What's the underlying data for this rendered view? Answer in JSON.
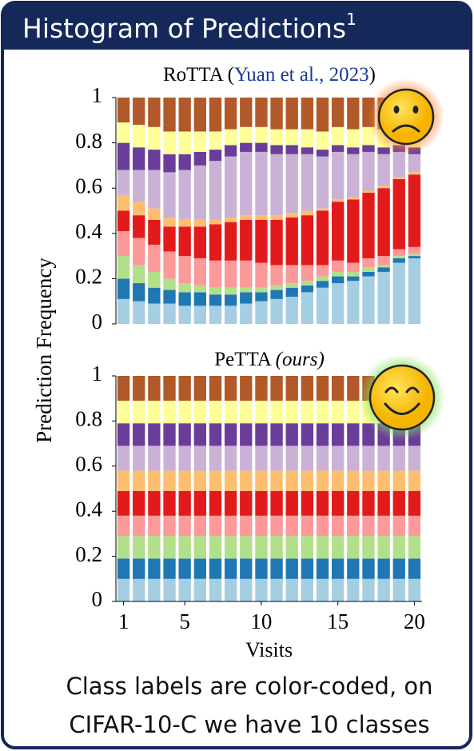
{
  "header": {
    "title": "Histogram of Predictions",
    "footnote": "1"
  },
  "chart_data": [
    {
      "type": "bar",
      "stacked": true,
      "title": [
        "RoTTA (",
        "Yuan et al., 2023",
        ")"
      ],
      "ylabel": "Prediction Frequency",
      "x": [
        1,
        2,
        3,
        4,
        5,
        6,
        7,
        8,
        9,
        10,
        11,
        12,
        13,
        14,
        15,
        16,
        17,
        18,
        19,
        20
      ],
      "xlim": [
        0.5,
        20.5
      ],
      "ylim": [
        0,
        1
      ],
      "yticks": [
        0,
        0.2,
        0.4,
        0.6,
        0.8,
        1
      ],
      "series": [
        {
          "color": "#a6cee3",
          "values": [
            0.11,
            0.1,
            0.09,
            0.09,
            0.08,
            0.08,
            0.08,
            0.08,
            0.09,
            0.1,
            0.11,
            0.12,
            0.14,
            0.16,
            0.18,
            0.19,
            0.21,
            0.23,
            0.27,
            0.29
          ]
        },
        {
          "color": "#1f78b4",
          "values": [
            0.09,
            0.08,
            0.07,
            0.06,
            0.06,
            0.06,
            0.05,
            0.05,
            0.05,
            0.04,
            0.04,
            0.04,
            0.03,
            0.03,
            0.03,
            0.02,
            0.02,
            0.02,
            0.02,
            0.01
          ]
        },
        {
          "color": "#b2df8a",
          "values": [
            0.1,
            0.08,
            0.07,
            0.05,
            0.04,
            0.03,
            0.03,
            0.03,
            0.02,
            0.02,
            0.02,
            0.02,
            0.02,
            0.02,
            0.02,
            0.02,
            0.02,
            0.01,
            0.01,
            0.01
          ]
        },
        {
          "color": "#fb9a99",
          "values": [
            0.11,
            0.12,
            0.12,
            0.12,
            0.12,
            0.12,
            0.12,
            0.12,
            0.12,
            0.11,
            0.09,
            0.08,
            0.07,
            0.05,
            0.05,
            0.04,
            0.04,
            0.04,
            0.03,
            0.03
          ]
        },
        {
          "color": "#e31a1c",
          "values": [
            0.09,
            0.1,
            0.11,
            0.11,
            0.13,
            0.14,
            0.16,
            0.17,
            0.18,
            0.19,
            0.2,
            0.21,
            0.22,
            0.24,
            0.26,
            0.28,
            0.29,
            0.3,
            0.31,
            0.32
          ]
        },
        {
          "color": "#fdbf6f",
          "values": [
            0.07,
            0.06,
            0.05,
            0.04,
            0.03,
            0.03,
            0.02,
            0.02,
            0.02,
            0.02,
            0.02,
            0.02,
            0.02,
            0.01,
            0.01,
            0.01,
            0.01,
            0.01,
            0.01,
            0.01
          ]
        },
        {
          "color": "#cab2d6",
          "values": [
            0.11,
            0.14,
            0.17,
            0.2,
            0.22,
            0.24,
            0.26,
            0.27,
            0.28,
            0.28,
            0.27,
            0.26,
            0.25,
            0.23,
            0.21,
            0.19,
            0.17,
            0.14,
            0.11,
            0.08
          ]
        },
        {
          "color": "#6a3d9a",
          "values": [
            0.12,
            0.1,
            0.09,
            0.08,
            0.07,
            0.06,
            0.05,
            0.05,
            0.04,
            0.04,
            0.04,
            0.04,
            0.03,
            0.03,
            0.03,
            0.03,
            0.03,
            0.03,
            0.03,
            0.03
          ]
        },
        {
          "color": "#ffff99",
          "values": [
            0.09,
            0.1,
            0.1,
            0.1,
            0.1,
            0.09,
            0.08,
            0.07,
            0.07,
            0.07,
            0.07,
            0.07,
            0.08,
            0.08,
            0.08,
            0.08,
            0.08,
            0.08,
            0.08,
            0.08
          ]
        },
        {
          "color": "#b15928",
          "values": [
            0.11,
            0.12,
            0.13,
            0.15,
            0.15,
            0.15,
            0.15,
            0.14,
            0.13,
            0.13,
            0.14,
            0.14,
            0.14,
            0.15,
            0.13,
            0.14,
            0.13,
            0.14,
            0.13,
            0.14
          ]
        }
      ]
    },
    {
      "type": "bar",
      "stacked": true,
      "title": [
        "PeTTA ",
        "(ours)"
      ],
      "xlabel": "Visits",
      "x": [
        1,
        2,
        3,
        4,
        5,
        6,
        7,
        8,
        9,
        10,
        11,
        12,
        13,
        14,
        15,
        16,
        17,
        18,
        19,
        20
      ],
      "xlim": [
        0.5,
        20.5
      ],
      "xticks": [
        1,
        5,
        10,
        15,
        20
      ],
      "ylim": [
        0,
        1
      ],
      "yticks": [
        0,
        0.2,
        0.4,
        0.6,
        0.8,
        1
      ],
      "series": [
        {
          "color": "#a6cee3",
          "values": [
            0.1,
            0.1,
            0.1,
            0.1,
            0.1,
            0.1,
            0.1,
            0.1,
            0.1,
            0.1,
            0.1,
            0.1,
            0.1,
            0.1,
            0.1,
            0.1,
            0.1,
            0.1,
            0.1,
            0.1
          ]
        },
        {
          "color": "#1f78b4",
          "values": [
            0.09,
            0.09,
            0.09,
            0.09,
            0.09,
            0.09,
            0.09,
            0.09,
            0.09,
            0.09,
            0.09,
            0.09,
            0.09,
            0.09,
            0.09,
            0.09,
            0.09,
            0.09,
            0.09,
            0.09
          ]
        },
        {
          "color": "#b2df8a",
          "values": [
            0.1,
            0.1,
            0.1,
            0.1,
            0.1,
            0.1,
            0.1,
            0.1,
            0.1,
            0.1,
            0.1,
            0.1,
            0.1,
            0.1,
            0.1,
            0.1,
            0.1,
            0.1,
            0.1,
            0.1
          ]
        },
        {
          "color": "#fb9a99",
          "values": [
            0.09,
            0.09,
            0.09,
            0.09,
            0.09,
            0.09,
            0.09,
            0.09,
            0.09,
            0.09,
            0.09,
            0.09,
            0.09,
            0.09,
            0.09,
            0.09,
            0.09,
            0.09,
            0.09,
            0.09
          ]
        },
        {
          "color": "#e31a1c",
          "values": [
            0.11,
            0.11,
            0.11,
            0.11,
            0.11,
            0.11,
            0.11,
            0.11,
            0.11,
            0.11,
            0.11,
            0.11,
            0.11,
            0.11,
            0.11,
            0.11,
            0.11,
            0.11,
            0.11,
            0.11
          ]
        },
        {
          "color": "#fdbf6f",
          "values": [
            0.09,
            0.09,
            0.09,
            0.09,
            0.09,
            0.09,
            0.09,
            0.09,
            0.09,
            0.09,
            0.09,
            0.09,
            0.09,
            0.09,
            0.09,
            0.09,
            0.09,
            0.09,
            0.09,
            0.09
          ]
        },
        {
          "color": "#cab2d6",
          "values": [
            0.11,
            0.11,
            0.11,
            0.11,
            0.11,
            0.11,
            0.11,
            0.11,
            0.11,
            0.11,
            0.11,
            0.11,
            0.11,
            0.11,
            0.11,
            0.11,
            0.11,
            0.11,
            0.11,
            0.11
          ]
        },
        {
          "color": "#6a3d9a",
          "values": [
            0.1,
            0.1,
            0.1,
            0.1,
            0.1,
            0.1,
            0.1,
            0.1,
            0.1,
            0.1,
            0.1,
            0.1,
            0.1,
            0.1,
            0.1,
            0.1,
            0.1,
            0.1,
            0.1,
            0.1
          ]
        },
        {
          "color": "#ffff99",
          "values": [
            0.1,
            0.1,
            0.1,
            0.1,
            0.1,
            0.1,
            0.1,
            0.1,
            0.1,
            0.1,
            0.1,
            0.1,
            0.1,
            0.1,
            0.1,
            0.1,
            0.1,
            0.1,
            0.1,
            0.1
          ]
        },
        {
          "color": "#b15928",
          "values": [
            0.11,
            0.11,
            0.11,
            0.11,
            0.11,
            0.11,
            0.11,
            0.11,
            0.11,
            0.11,
            0.11,
            0.11,
            0.11,
            0.11,
            0.11,
            0.11,
            0.11,
            0.11,
            0.11,
            0.11
          ]
        }
      ]
    }
  ],
  "caption": [
    "Class labels are color-coded, on",
    "CIFAR-10-C we have 10 classes"
  ]
}
